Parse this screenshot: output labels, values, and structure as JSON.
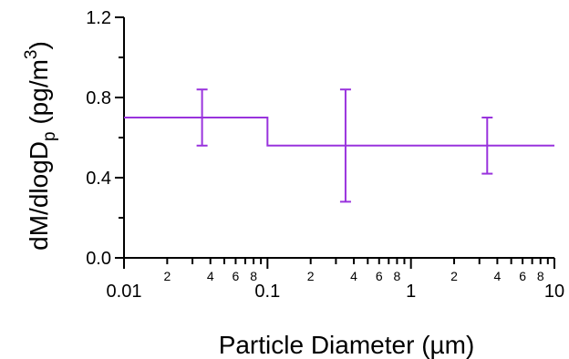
{
  "chart_data": {
    "type": "line",
    "step": true,
    "xscale": "log",
    "xlim": [
      0.01,
      10
    ],
    "ylim": [
      0.0,
      1.2
    ],
    "grid": false,
    "xlabel": "Particle Diameter (µm)",
    "ylabel": {
      "main": "dM/dlogD",
      "sub": "p",
      "unit_open": " (pg/m",
      "unit_sup": "3",
      "unit_close": ")"
    },
    "x_major_ticks": [
      {
        "value": 0.01,
        "label": "0.01"
      },
      {
        "value": 0.1,
        "label": "0.1"
      },
      {
        "value": 1,
        "label": "1"
      },
      {
        "value": 10,
        "label": "10"
      }
    ],
    "x_minor_tick_labels": [
      {
        "value": 0.02,
        "label": "2"
      },
      {
        "value": 0.04,
        "label": "4"
      },
      {
        "value": 0.06,
        "label": "6"
      },
      {
        "value": 0.08,
        "label": "8"
      },
      {
        "value": 0.2,
        "label": "2"
      },
      {
        "value": 0.4,
        "label": "4"
      },
      {
        "value": 0.6,
        "label": "6"
      },
      {
        "value": 0.8,
        "label": "8"
      },
      {
        "value": 2,
        "label": "2"
      },
      {
        "value": 4,
        "label": "4"
      },
      {
        "value": 6,
        "label": "6"
      },
      {
        "value": 8,
        "label": "8"
      }
    ],
    "y_ticks": [
      {
        "value": 0.0,
        "label": "0.0"
      },
      {
        "value": 0.4,
        "label": "0.4"
      },
      {
        "value": 0.8,
        "label": "0.8"
      },
      {
        "value": 1.2,
        "label": "1.2"
      }
    ],
    "y_minor_ticks": [
      0.2,
      0.6,
      1.0
    ],
    "series": [
      {
        "color": "#9933dd",
        "bins": [
          {
            "x_start": 0.01,
            "x_end": 0.1,
            "y": 0.7
          },
          {
            "x_start": 0.1,
            "x_end": 10,
            "y": 0.56
          }
        ],
        "error_bars": [
          {
            "x": 0.035,
            "y": 0.7,
            "low": 0.56,
            "high": 0.84
          },
          {
            "x": 0.35,
            "y": 0.56,
            "low": 0.28,
            "high": 0.84
          },
          {
            "x": 3.4,
            "y": 0.56,
            "low": 0.42,
            "high": 0.7
          }
        ]
      }
    ]
  }
}
